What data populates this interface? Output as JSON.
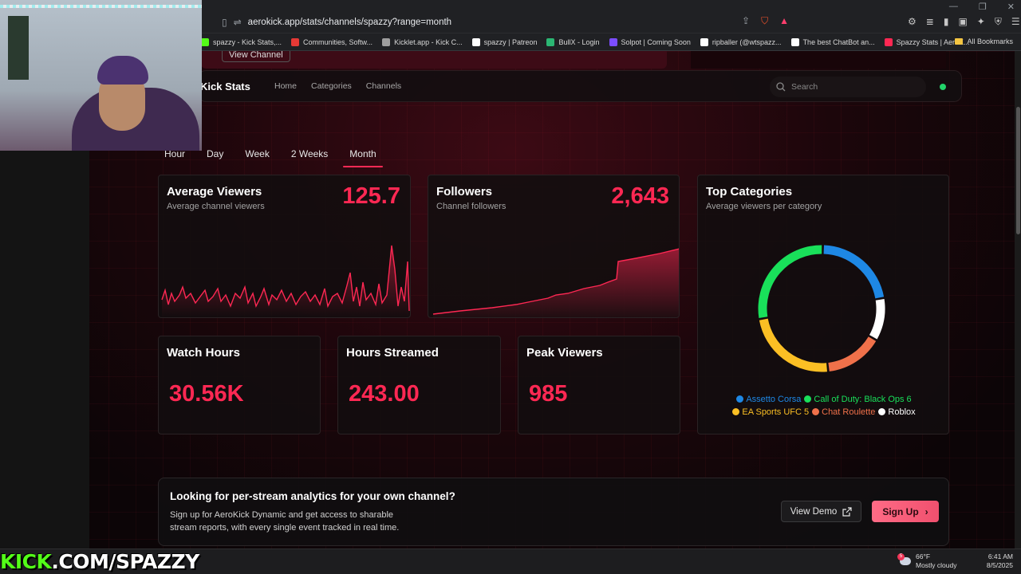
{
  "browser": {
    "url": "aerokick.app/stats/channels/spazzy?range=month",
    "bookmarks": [
      {
        "label": "spazzy - Kick Stats,...",
        "color": "#53fc18"
      },
      {
        "label": "Communities, Softw...",
        "color": "#e53935"
      },
      {
        "label": "Kicklet.app - Kick C...",
        "color": "#9e9e9e"
      },
      {
        "label": "spazzy | Patreon",
        "color": "#ffffff"
      },
      {
        "label": "BullX - Login",
        "color": "#2bb673"
      },
      {
        "label": "Solpot | Coming Soon",
        "color": "#7c4dff"
      },
      {
        "label": "ripballer (@wtspazz...",
        "color": "#ffffff"
      },
      {
        "label": "The best ChatBot an...",
        "color": "#ffffff"
      },
      {
        "label": "Spazzy Stats | AeroK...",
        "color": "#ff2853"
      }
    ],
    "all_bookmarks": "All Bookmarks"
  },
  "top_strip": {
    "view_channel": "View Channel"
  },
  "nav": {
    "brand": "Kick Stats",
    "links": [
      "Home",
      "Categories",
      "Channels"
    ],
    "search_placeholder": "Search"
  },
  "range_tabs": {
    "items": [
      "Hour",
      "Day",
      "Week",
      "2 Weeks",
      "Month"
    ],
    "active": "Month"
  },
  "cards": {
    "avg_viewers": {
      "title": "Average Viewers",
      "subtitle": "Average channel viewers",
      "value": "125.7"
    },
    "followers": {
      "title": "Followers",
      "subtitle": "Channel followers",
      "value": "2,643"
    },
    "top_categories": {
      "title": "Top Categories",
      "subtitle": "Average viewers per category"
    },
    "watch_hours": {
      "title": "Watch Hours",
      "value": "30.56K"
    },
    "hours_streamed": {
      "title": "Hours Streamed",
      "value": "243.00"
    },
    "peak_viewers": {
      "title": "Peak Viewers",
      "value": "985"
    }
  },
  "categories": [
    {
      "name": "Assetto Corsa",
      "color": "#1e88e5",
      "share": 0.22
    },
    {
      "name": "Call of Duty: Black Ops 6",
      "color": "#19e05a",
      "share": 0.28
    },
    {
      "name": "EA Sports UFC 5",
      "color": "#fbbf24",
      "share": 0.24
    },
    {
      "name": "Chat Roulette",
      "color": "#f0714a",
      "share": 0.15
    },
    {
      "name": "Roblox",
      "color": "#ffffff",
      "share": 0.11
    }
  ],
  "cta": {
    "heading": "Looking for per-stream analytics for your own channel?",
    "body": "Sign up for AeroKick Dynamic and get access to sharable stream reports, with every single event tracked in real time.",
    "demo_label": "View Demo",
    "signup_label": "Sign Up"
  },
  "overlay": {
    "kick": "KICK",
    "rest": ".COM/SPAZZY"
  },
  "taskbar": {
    "temp": "66°F",
    "weather": "Mostly cloudy",
    "weather_badge": "5",
    "time": "6:41 AM",
    "date": "8/5/2025"
  }
}
